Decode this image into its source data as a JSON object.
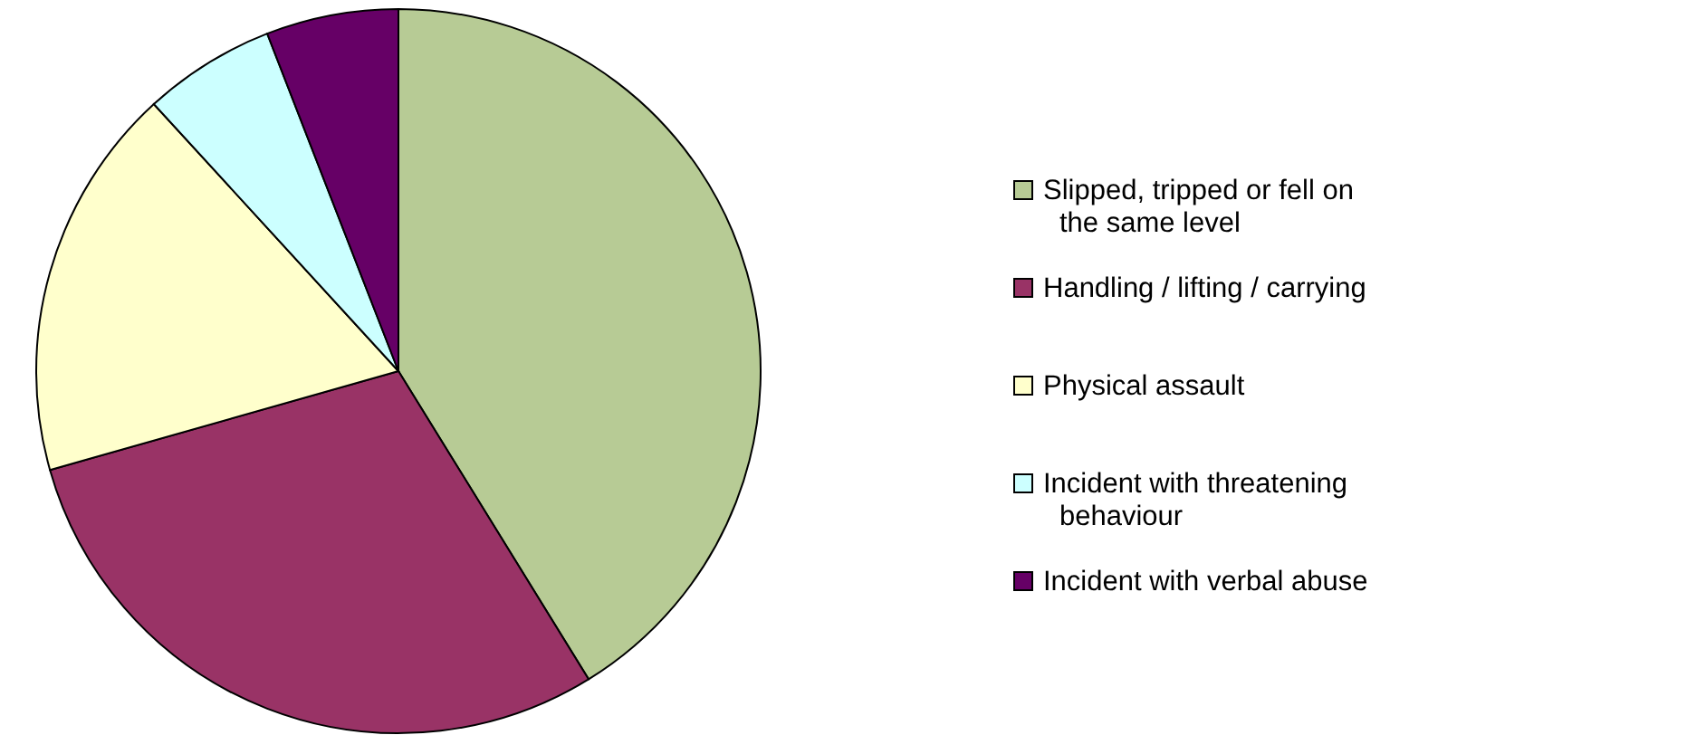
{
  "chart_data": {
    "type": "pie",
    "categories": [
      "Slipped, tripped or fell on the same level",
      "Handling / lifting / carrying",
      "Physical assault",
      "Incident with threatening behaviour",
      "Incident with verbal abuse"
    ],
    "values": [
      41.2,
      29.4,
      17.6,
      5.9,
      5.9
    ],
    "colors": [
      "#b7cb95",
      "#993366",
      "#ffffcc",
      "#ccffff",
      "#660066"
    ],
    "legend": "right"
  }
}
